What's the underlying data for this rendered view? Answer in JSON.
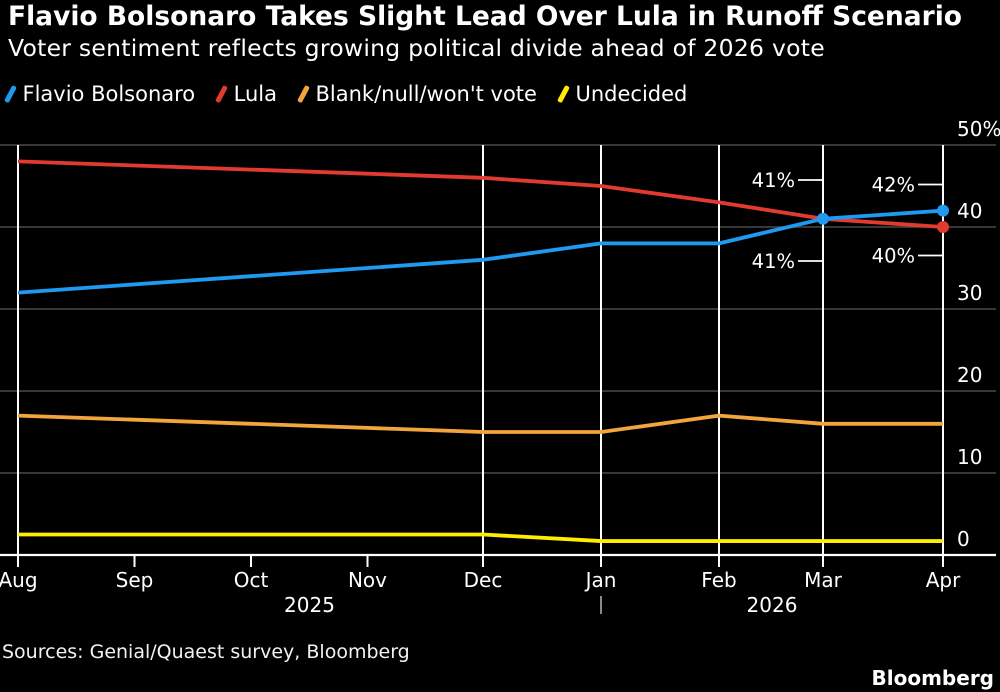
{
  "header": {
    "title": "Flavio Bolsonaro Takes Slight Lead Over Lula in Runoff Scenario",
    "subtitle": "Voter sentiment reflects growing political divide ahead of 2026 vote"
  },
  "chart_data": {
    "type": "line",
    "categories": [
      "Aug",
      "Sep",
      "Oct",
      "Nov",
      "Dec",
      "Jan",
      "Feb",
      "Mar",
      "Apr"
    ],
    "year_labels": [
      {
        "label": "2025",
        "from": "Aug",
        "to": "Jan"
      },
      {
        "label": "2026",
        "from": "Jan",
        "to": "Apr"
      }
    ],
    "ylim": [
      0,
      50
    ],
    "ytick_step": 10,
    "ytick_top_suffix": "%",
    "grid": {
      "horizontal": true,
      "vertical_months": [
        "Aug",
        "Dec",
        "Jan",
        "Feb",
        "Mar",
        "Apr"
      ]
    },
    "legend_position": "top",
    "series": [
      {
        "name": "Flavio Bolsonaro",
        "color": "#1f9af0",
        "values": [
          32,
          33,
          34,
          35,
          36,
          38,
          38,
          41,
          42
        ]
      },
      {
        "name": "Lula",
        "color": "#e13a30",
        "values": [
          48,
          47.5,
          47,
          46.5,
          46,
          45,
          43,
          41,
          40
        ]
      },
      {
        "name": "Blank/null/won't vote",
        "color": "#f1a53c",
        "values": [
          17,
          16.5,
          16,
          15.5,
          15,
          15,
          17,
          16,
          16
        ]
      },
      {
        "name": "Undecided",
        "color": "#ffed00",
        "values": [
          2.5,
          2.5,
          2.5,
          2.5,
          2.5,
          1.7,
          1.7,
          1.7,
          1.7
        ]
      }
    ],
    "markers": [
      {
        "series": 0,
        "month": "Mar"
      },
      {
        "series": 0,
        "month": "Apr"
      },
      {
        "series": 1,
        "month": "Apr"
      }
    ],
    "annotations": [
      {
        "text": "41%",
        "series": 0,
        "month": "Mar",
        "value": 41,
        "position": "above"
      },
      {
        "text": "42%",
        "series": 0,
        "month": "Apr",
        "value": 42,
        "position": "above"
      },
      {
        "text": "41%",
        "series": 1,
        "month": "Mar",
        "value": 41,
        "position": "below"
      },
      {
        "text": "40%",
        "series": 1,
        "month": "Apr",
        "value": 40,
        "position": "below"
      }
    ]
  },
  "footer": {
    "sources": "Sources: Genial/Quaest survey, Bloomberg",
    "brand": "Bloomberg"
  },
  "colors": {
    "background": "#000000",
    "grid_line": "#4b4b4b",
    "month_grid_line": "#ffffff",
    "axis_line": "#ffffff",
    "year_text": "#9b9b9b",
    "text": "#ffffff"
  }
}
